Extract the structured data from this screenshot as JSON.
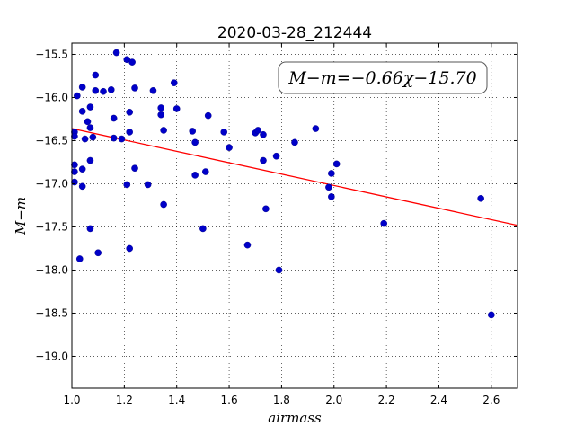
{
  "chart_data": {
    "type": "scatter",
    "title": "2020-03-28_212444",
    "xlabel": "airmass",
    "ylabel": "M−m",
    "xlim": [
      1.0,
      2.7
    ],
    "ylim": [
      -19.37,
      -15.37
    ],
    "y_inverted": true,
    "grid": true,
    "xticks": [
      "1.0",
      "1.2",
      "1.4",
      "1.6",
      "1.8",
      "2.0",
      "2.2",
      "2.4",
      "2.6"
    ],
    "yticks": [
      "−15.5",
      "−16.0",
      "−16.5",
      "−17.0",
      "−17.5",
      "−18.0",
      "−18.5",
      "−19.0"
    ],
    "annotation": "M−m=−0.66χ−15.70",
    "fit_line": {
      "slope": -0.66,
      "intercept": -15.7,
      "color": "#ff0000"
    },
    "marker_color": "#0000c8",
    "series": [
      {
        "points": [
          [
            1.01,
            -16.4
          ],
          [
            1.01,
            -16.45
          ],
          [
            1.01,
            -16.78
          ],
          [
            1.01,
            -16.86
          ],
          [
            1.01,
            -16.98
          ],
          [
            1.02,
            -15.98
          ],
          [
            1.03,
            -17.87
          ],
          [
            1.04,
            -15.88
          ],
          [
            1.04,
            -16.16
          ],
          [
            1.04,
            -16.83
          ],
          [
            1.04,
            -17.03
          ],
          [
            1.05,
            -16.48
          ],
          [
            1.06,
            -16.28
          ],
          [
            1.07,
            -16.11
          ],
          [
            1.07,
            -16.35
          ],
          [
            1.07,
            -16.73
          ],
          [
            1.07,
            -17.52
          ],
          [
            1.08,
            -16.46
          ],
          [
            1.09,
            -15.74
          ],
          [
            1.09,
            -15.92
          ],
          [
            1.1,
            -17.8
          ],
          [
            1.12,
            -15.93
          ],
          [
            1.15,
            -15.91
          ],
          [
            1.16,
            -16.47
          ],
          [
            1.16,
            -16.24
          ],
          [
            1.17,
            -15.48
          ],
          [
            1.19,
            -16.48
          ],
          [
            1.21,
            -15.56
          ],
          [
            1.21,
            -17.01
          ],
          [
            1.22,
            -16.4
          ],
          [
            1.22,
            -16.17
          ],
          [
            1.22,
            -17.75
          ],
          [
            1.23,
            -15.59
          ],
          [
            1.24,
            -15.89
          ],
          [
            1.24,
            -16.82
          ],
          [
            1.29,
            -17.01
          ],
          [
            1.31,
            -15.92
          ],
          [
            1.34,
            -16.12
          ],
          [
            1.34,
            -16.2
          ],
          [
            1.35,
            -16.38
          ],
          [
            1.35,
            -17.24
          ],
          [
            1.39,
            -15.83
          ],
          [
            1.4,
            -16.13
          ],
          [
            1.46,
            -16.39
          ],
          [
            1.47,
            -16.52
          ],
          [
            1.47,
            -16.9
          ],
          [
            1.5,
            -17.52
          ],
          [
            1.51,
            -16.86
          ],
          [
            1.52,
            -16.21
          ],
          [
            1.58,
            -16.4
          ],
          [
            1.6,
            -16.58
          ],
          [
            1.67,
            -17.71
          ],
          [
            1.7,
            -16.41
          ],
          [
            1.71,
            -16.38
          ],
          [
            1.73,
            -16.43
          ],
          [
            1.73,
            -16.73
          ],
          [
            1.74,
            -17.29
          ],
          [
            1.78,
            -16.68
          ],
          [
            1.79,
            -18.0
          ],
          [
            1.85,
            -16.52
          ],
          [
            1.93,
            -16.36
          ],
          [
            1.98,
            -17.04
          ],
          [
            1.99,
            -16.88
          ],
          [
            1.99,
            -17.15
          ],
          [
            2.01,
            -16.77
          ],
          [
            2.19,
            -17.46
          ],
          [
            2.56,
            -17.17
          ],
          [
            2.6,
            -18.52
          ]
        ]
      }
    ]
  }
}
